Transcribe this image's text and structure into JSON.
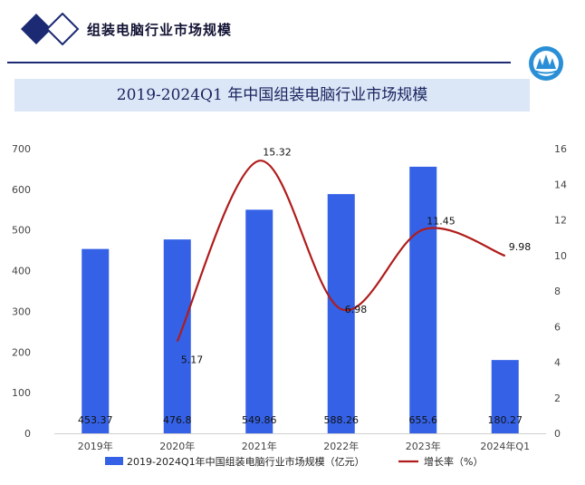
{
  "header": {
    "title": "组装电脑行业市场规模"
  },
  "colors": {
    "bar": "#3461e6",
    "line": "#b01c1c",
    "header_accent": "#1b2a73",
    "title_band": "#dbe6f6"
  },
  "chart_data": {
    "type": "bar",
    "title": "2019-2024Q1 年中国组装电脑行业市场规模",
    "categories": [
      "2019年",
      "2020年",
      "2021年",
      "2022年",
      "2023年",
      "2024年Q1"
    ],
    "series": [
      {
        "name": "2019-2024Q1年中国组装电脑行业市场规模（亿元）",
        "type": "bar",
        "axis": "left",
        "values": [
          453.37,
          476.8,
          549.86,
          588.26,
          655.6,
          180.27
        ],
        "labels": [
          "453.37",
          "476.8",
          "549.86",
          "588.26",
          "655.6",
          "180.27"
        ]
      },
      {
        "name": "增长率（%）",
        "type": "line",
        "axis": "right",
        "smooth": true,
        "values": [
          null,
          5.17,
          15.32,
          6.98,
          11.45,
          9.98
        ],
        "labels": [
          "",
          "5.17",
          "15.32",
          "6.98",
          "11.45",
          "9.98"
        ]
      }
    ],
    "y_left": {
      "ylim": [
        0,
        700
      ],
      "ticks": [
        "0",
        "100",
        "200",
        "300",
        "400",
        "500",
        "600",
        "700"
      ]
    },
    "y_right": {
      "ylim": [
        0,
        16
      ],
      "ticks": [
        "0",
        "2",
        "4",
        "6",
        "8",
        "10",
        "12",
        "14",
        "16"
      ]
    },
    "legend_position": "bottom",
    "grid": false
  }
}
